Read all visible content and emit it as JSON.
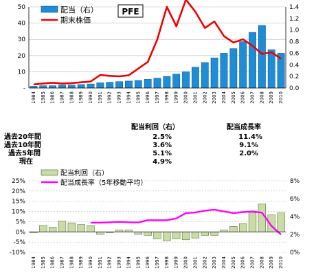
{
  "chart_data": [
    {
      "type": "bar",
      "title": "PFE",
      "x": [
        "1984",
        "1985",
        "1986",
        "1987",
        "1988",
        "1989",
        "1990",
        "1991",
        "1992",
        "1993",
        "1994",
        "1995",
        "1996",
        "1997",
        "1998",
        "1999",
        "2000",
        "2001",
        "2002",
        "2003",
        "2004",
        "2005",
        "2006",
        "2007",
        "2008",
        "2009",
        "2010"
      ],
      "series": [
        {
          "name": "配当（右）",
          "kind": "bar",
          "axis": "right",
          "color": "#1f8dd6",
          "values": [
            0.03,
            0.04,
            0.04,
            0.05,
            0.05,
            0.06,
            0.07,
            0.09,
            0.1,
            0.11,
            0.12,
            0.13,
            0.15,
            0.17,
            0.2,
            0.24,
            0.28,
            0.36,
            0.44,
            0.52,
            0.6,
            0.68,
            0.8,
            0.96,
            1.08,
            0.66,
            0.6
          ]
        },
        {
          "name": "期末株価",
          "kind": "line",
          "axis": "left",
          "color": "#ee0000",
          "values": [
            2.2,
            2.8,
            3.2,
            2.8,
            3.0,
            3.5,
            4.0,
            8.0,
            7.5,
            7.2,
            7.8,
            12.0,
            16.0,
            30.0,
            50.0,
            38.0,
            54.5,
            47.0,
            37.0,
            41.0,
            32.0,
            28.0,
            30.0,
            26.0,
            21.0,
            22.0,
            18.0
          ]
        }
      ],
      "ylim_left": [
        0,
        50
      ],
      "yticks_left": [
        "-",
        "10",
        "20",
        "30",
        "40",
        "50"
      ],
      "ylim_right": [
        0,
        1.4
      ],
      "yticks_right": [
        "0.0",
        "0.2",
        "0.4",
        "0.6",
        "0.8",
        "1.0",
        "1.2",
        "1.4"
      ]
    },
    {
      "type": "bar",
      "x": [
        "1984",
        "1985",
        "1986",
        "1987",
        "1988",
        "1989",
        "1990",
        "1991",
        "1992",
        "1993",
        "1994",
        "1995",
        "1996",
        "1997",
        "1998",
        "1999",
        "2000",
        "2001",
        "2002",
        "2003",
        "2004",
        "2005",
        "2006",
        "2007",
        "2008",
        "2009",
        "2010"
      ],
      "series": [
        {
          "name": "配当利回（右）",
          "kind": "bar",
          "axis": "right",
          "color": "#c8dca4",
          "values": [
            2.2,
            3.0,
            2.8,
            3.5,
            3.3,
            3.1,
            3.0,
            2.0,
            2.2,
            2.5,
            2.5,
            2.0,
            1.9,
            1.5,
            1.3,
            1.5,
            1.4,
            1.6,
            1.9,
            1.9,
            2.5,
            2.9,
            3.2,
            4.4,
            5.4,
            4.2,
            4.4
          ]
        },
        {
          "name": "配当成長率（5年移動平均）",
          "kind": "line",
          "axis": "left",
          "color": "#ff00ff",
          "values": [
            null,
            null,
            null,
            null,
            null,
            null,
            4.5,
            4.5,
            4.7,
            4.9,
            4.7,
            4.6,
            5.7,
            5.7,
            5.7,
            6.6,
            9.2,
            9.5,
            10.4,
            10.9,
            10.0,
            9.2,
            9.7,
            10.0,
            9.4,
            2.9,
            -1.3
          ]
        }
      ],
      "ylim_left": [
        -10,
        25
      ],
      "yticks_left": [
        "-10%",
        "-5%",
        "0%",
        "5%",
        "10%",
        "15%",
        "20%",
        "25%"
      ],
      "ylim_right": [
        0,
        8
      ],
      "yticks_right": [
        "0%",
        "2%",
        "4%",
        "6%",
        "8%"
      ]
    }
  ],
  "table": {
    "headers": [
      "配当利回（右）",
      "配当成長率"
    ],
    "rows": [
      {
        "label": "過去20年間",
        "yield": "2.5%",
        "growth": "11.4%"
      },
      {
        "label": "過去10年間",
        "yield": "3.6%",
        "growth": "9.1%"
      },
      {
        "label": "過去5年間",
        "yield": "5.1%",
        "growth": "2.0%"
      },
      {
        "label": "現在",
        "yield": "4.9%",
        "growth": ""
      }
    ]
  }
}
